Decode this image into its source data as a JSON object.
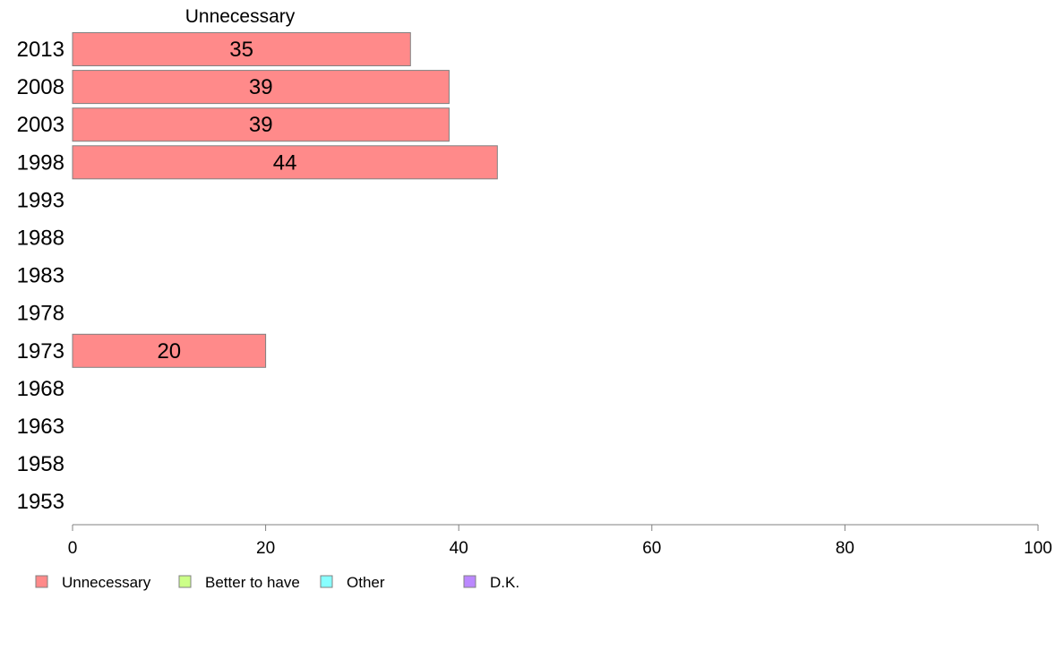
{
  "chart_data": {
    "type": "bar",
    "orientation": "horizontal",
    "title": "Unnecessary",
    "categories": [
      "2013",
      "2008",
      "2003",
      "1998",
      "1993",
      "1988",
      "1983",
      "1978",
      "1973",
      "1968",
      "1963",
      "1958",
      "1953"
    ],
    "series": [
      {
        "name": "Unnecessary",
        "color": "#ff8a8a",
        "values": [
          35,
          39,
          39,
          44,
          null,
          null,
          null,
          null,
          20,
          null,
          null,
          null,
          null
        ]
      }
    ],
    "value_labels": [
      "35",
      "39",
      "39",
      "44",
      "",
      "",
      "",
      "",
      "20",
      "",
      "",
      "",
      ""
    ],
    "xlim": [
      0,
      100
    ],
    "xticks": [
      0,
      20,
      40,
      60,
      80,
      100
    ],
    "grid": false,
    "legend": {
      "placement": "bottom-left",
      "entries": [
        {
          "name": "Unnecessary",
          "color": "#ff8a8a"
        },
        {
          "name": "Better to have",
          "color": "#ccff88"
        },
        {
          "name": "Other",
          "color": "#88ffff"
        },
        {
          "name": "D.K.",
          "color": "#bb88ff"
        }
      ]
    }
  }
}
